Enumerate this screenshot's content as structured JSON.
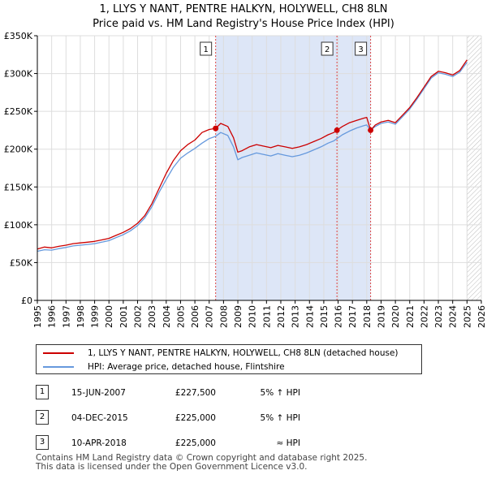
{
  "title_line1": "1, LLYS Y NANT, PENTRE HALKYN, HOLYWELL, CH8 8LN",
  "title_line2": "Price paid vs. HM Land Registry's House Price Index (HPI)",
  "colors": {
    "property": "#cc0000",
    "hpi": "#6699dd",
    "shade": "#dde6f7",
    "hatch": "#bbbbbb",
    "vline": "#dd4444"
  },
  "chart_data": {
    "type": "line",
    "title": "Price paid vs. HM Land Registry's House Price Index (HPI)",
    "xlabel": "",
    "ylabel": "",
    "xlim": [
      1995,
      2026
    ],
    "ylim": [
      0,
      350000
    ],
    "x_ticks": [
      "1995",
      "1996",
      "1997",
      "1998",
      "1999",
      "2000",
      "2001",
      "2002",
      "2003",
      "2004",
      "2005",
      "2006",
      "2007",
      "2008",
      "2009",
      "2010",
      "2011",
      "2012",
      "2013",
      "2014",
      "2015",
      "2016",
      "2017",
      "2018",
      "2019",
      "2020",
      "2021",
      "2022",
      "2023",
      "2024",
      "2025",
      "2026"
    ],
    "y_ticks": [
      {
        "value": 0,
        "label": "£0"
      },
      {
        "value": 50000,
        "label": "£50K"
      },
      {
        "value": 100000,
        "label": "£100K"
      },
      {
        "value": 150000,
        "label": "£150K"
      },
      {
        "value": 200000,
        "label": "£200K"
      },
      {
        "value": 250000,
        "label": "£250K"
      },
      {
        "value": 300000,
        "label": "£300K"
      },
      {
        "value": 350000,
        "label": "£350K"
      }
    ],
    "series": [
      {
        "name": "1, LLYS Y NANT, PENTRE HALKYN, HOLYWELL, CH8 8LN (detached house)",
        "color": "#cc0000",
        "points": [
          [
            1995.0,
            68000
          ],
          [
            1995.5,
            70500
          ],
          [
            1996.0,
            69500
          ],
          [
            1996.5,
            71500
          ],
          [
            1997.0,
            73000
          ],
          [
            1997.5,
            75000
          ],
          [
            1998.0,
            76000
          ],
          [
            1998.5,
            77000
          ],
          [
            1999.0,
            78000
          ],
          [
            1999.5,
            80000
          ],
          [
            2000.0,
            82000
          ],
          [
            2000.5,
            86000
          ],
          [
            2001.0,
            90000
          ],
          [
            2001.5,
            95000
          ],
          [
            2002.0,
            102000
          ],
          [
            2002.5,
            112000
          ],
          [
            2003.0,
            128000
          ],
          [
            2003.5,
            148000
          ],
          [
            2004.0,
            168000
          ],
          [
            2004.5,
            185000
          ],
          [
            2005.0,
            198000
          ],
          [
            2005.5,
            206000
          ],
          [
            2006.0,
            212000
          ],
          [
            2006.5,
            222000
          ],
          [
            2007.0,
            226000
          ],
          [
            2007.45,
            227500
          ],
          [
            2007.8,
            234000
          ],
          [
            2008.3,
            230000
          ],
          [
            2008.7,
            215000
          ],
          [
            2009.0,
            196000
          ],
          [
            2009.3,
            198000
          ],
          [
            2009.8,
            203000
          ],
          [
            2010.3,
            206000
          ],
          [
            2010.8,
            204000
          ],
          [
            2011.3,
            202000
          ],
          [
            2011.8,
            205000
          ],
          [
            2012.3,
            203000
          ],
          [
            2012.8,
            201000
          ],
          [
            2013.3,
            203000
          ],
          [
            2013.8,
            206000
          ],
          [
            2014.3,
            210000
          ],
          [
            2014.8,
            214000
          ],
          [
            2015.3,
            219000
          ],
          [
            2015.7,
            222000
          ],
          [
            2015.92,
            225000
          ],
          [
            2016.3,
            230000
          ],
          [
            2016.8,
            235000
          ],
          [
            2017.3,
            238000
          ],
          [
            2017.8,
            241000
          ],
          [
            2018.0,
            242000
          ],
          [
            2018.27,
            225000
          ],
          [
            2018.6,
            232000
          ],
          [
            2019.0,
            236000
          ],
          [
            2019.5,
            238000
          ],
          [
            2020.0,
            235000
          ],
          [
            2020.5,
            245000
          ],
          [
            2021.0,
            255000
          ],
          [
            2021.5,
            268000
          ],
          [
            2022.0,
            282000
          ],
          [
            2022.5,
            296000
          ],
          [
            2023.0,
            303000
          ],
          [
            2023.5,
            301000
          ],
          [
            2024.0,
            298000
          ],
          [
            2024.5,
            304000
          ],
          [
            2025.0,
            318000
          ]
        ]
      },
      {
        "name": "HPI: Average price, detached house, Flintshire",
        "color": "#6699dd",
        "points": [
          [
            1995.0,
            65000
          ],
          [
            1995.5,
            67000
          ],
          [
            1996.0,
            66500
          ],
          [
            1996.5,
            68500
          ],
          [
            1997.0,
            70000
          ],
          [
            1997.5,
            72000
          ],
          [
            1998.0,
            73000
          ],
          [
            1998.5,
            74000
          ],
          [
            1999.0,
            75000
          ],
          [
            1999.5,
            77000
          ],
          [
            2000.0,
            79000
          ],
          [
            2000.5,
            83000
          ],
          [
            2001.0,
            87000
          ],
          [
            2001.5,
            92000
          ],
          [
            2002.0,
            99000
          ],
          [
            2002.5,
            109000
          ],
          [
            2003.0,
            124000
          ],
          [
            2003.5,
            143000
          ],
          [
            2004.0,
            160000
          ],
          [
            2004.5,
            176000
          ],
          [
            2005.0,
            188000
          ],
          [
            2005.5,
            195000
          ],
          [
            2006.0,
            201000
          ],
          [
            2006.5,
            208000
          ],
          [
            2007.0,
            214000
          ],
          [
            2007.45,
            217000
          ],
          [
            2007.8,
            222000
          ],
          [
            2008.3,
            218000
          ],
          [
            2008.7,
            203000
          ],
          [
            2009.0,
            186000
          ],
          [
            2009.3,
            189000
          ],
          [
            2009.8,
            192000
          ],
          [
            2010.3,
            195000
          ],
          [
            2010.8,
            193000
          ],
          [
            2011.3,
            191000
          ],
          [
            2011.8,
            194000
          ],
          [
            2012.3,
            192000
          ],
          [
            2012.8,
            190000
          ],
          [
            2013.3,
            192000
          ],
          [
            2013.8,
            195000
          ],
          [
            2014.3,
            199000
          ],
          [
            2014.8,
            203000
          ],
          [
            2015.3,
            208000
          ],
          [
            2015.7,
            211000
          ],
          [
            2015.92,
            214000
          ],
          [
            2016.3,
            219000
          ],
          [
            2016.8,
            224000
          ],
          [
            2017.3,
            228000
          ],
          [
            2017.8,
            231000
          ],
          [
            2018.0,
            232000
          ],
          [
            2018.27,
            225000
          ],
          [
            2018.6,
            230000
          ],
          [
            2019.0,
            234000
          ],
          [
            2019.5,
            236000
          ],
          [
            2020.0,
            233000
          ],
          [
            2020.5,
            243000
          ],
          [
            2021.0,
            253000
          ],
          [
            2021.5,
            266000
          ],
          [
            2022.0,
            280000
          ],
          [
            2022.5,
            294000
          ],
          [
            2023.0,
            301000
          ],
          [
            2023.5,
            299000
          ],
          [
            2024.0,
            296000
          ],
          [
            2024.5,
            302000
          ],
          [
            2025.0,
            315000
          ]
        ]
      }
    ],
    "sales": [
      {
        "label": "1",
        "x": 2007.45,
        "value": 227500
      },
      {
        "label": "2",
        "x": 2015.92,
        "value": 225000
      },
      {
        "label": "3",
        "x": 2018.27,
        "value": 225000
      }
    ],
    "shaded_span": [
      2007.45,
      2018.27
    ],
    "forecast_from": 2025.0
  },
  "legend": {
    "property_label": "1, LLYS Y NANT, PENTRE HALKYN, HOLYWELL, CH8 8LN (detached house)",
    "hpi_label": "HPI: Average price, detached house, Flintshire"
  },
  "transactions": [
    {
      "num": "1",
      "date": "15-JUN-2007",
      "price": "£227,500",
      "hpi": "5% ↑ HPI"
    },
    {
      "num": "2",
      "date": "04-DEC-2015",
      "price": "£225,000",
      "hpi": "5% ↑ HPI"
    },
    {
      "num": "3",
      "date": "10-APR-2018",
      "price": "£225,000",
      "hpi": "≈ HPI"
    }
  ],
  "footer": {
    "line1": "Contains HM Land Registry data © Crown copyright and database right 2025.",
    "line2": "This data is licensed under the Open Government Licence v3.0."
  }
}
